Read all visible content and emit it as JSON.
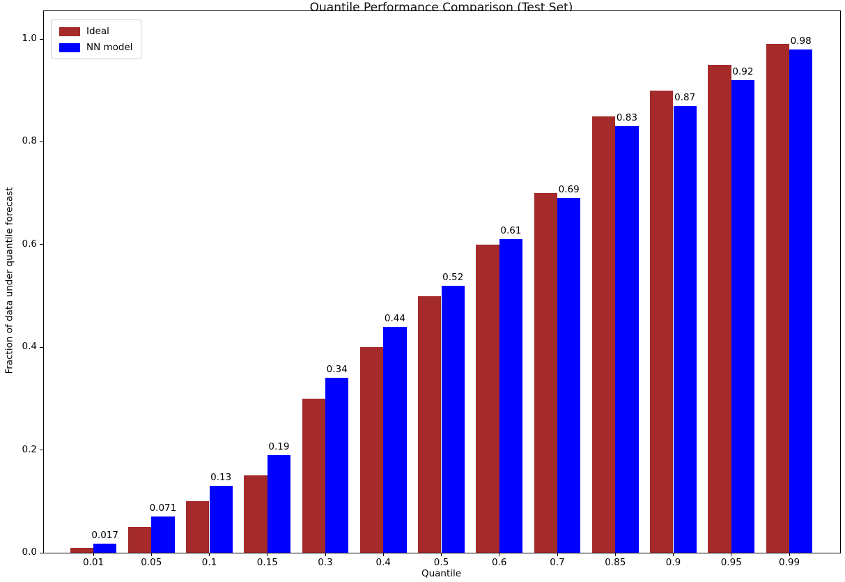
{
  "chart_data": {
    "type": "bar",
    "title": "Quantile Performance Comparison (Test Set)",
    "xlabel": "Quantile",
    "ylabel": "Fraction of data under quantile forecast",
    "categories": [
      "0.01",
      "0.05",
      "0.1",
      "0.15",
      "0.3",
      "0.4",
      "0.5",
      "0.6",
      "0.7",
      "0.85",
      "0.9",
      "0.95",
      "0.99"
    ],
    "series": [
      {
        "name": "Ideal",
        "color": "#a52a2a",
        "values": [
          0.01,
          0.05,
          0.1,
          0.15,
          0.3,
          0.4,
          0.5,
          0.6,
          0.7,
          0.85,
          0.9,
          0.95,
          0.99
        ]
      },
      {
        "name": "NN model",
        "color": "#0000ff",
        "values": [
          0.017,
          0.071,
          0.13,
          0.19,
          0.34,
          0.44,
          0.52,
          0.61,
          0.69,
          0.83,
          0.87,
          0.92,
          0.98
        ],
        "bar_labels": [
          "0.017",
          "0.071",
          "0.13",
          "0.19",
          "0.34",
          "0.44",
          "0.52",
          "0.61",
          "0.69",
          "0.83",
          "0.87",
          "0.92",
          "0.98"
        ]
      }
    ],
    "yticks": [
      "0.0",
      "0.2",
      "0.4",
      "0.6",
      "0.8",
      "1.0"
    ],
    "ylim": [
      0,
      1.054
    ],
    "legend_position": "upper left",
    "grid": false,
    "spine_color": "#000000"
  }
}
